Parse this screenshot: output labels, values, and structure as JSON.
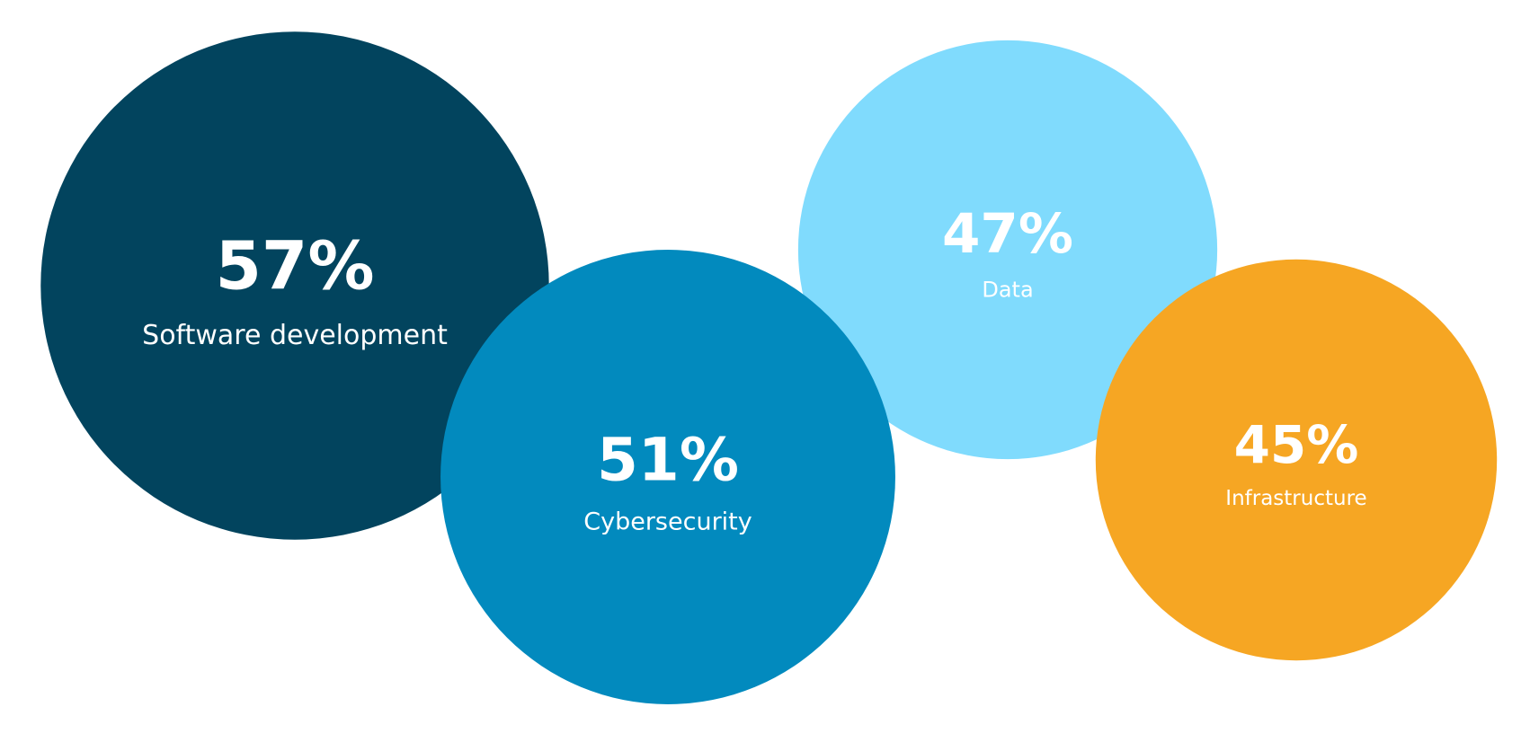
{
  "chart_data": {
    "type": "bubble",
    "title": "",
    "series": [
      {
        "category": "Software development",
        "value": 57,
        "value_label": "57%",
        "color": "#02445E"
      },
      {
        "category": "Data",
        "value": 47,
        "value_label": "47%",
        "color": "#80DBFD"
      },
      {
        "category": "Cybersecurity",
        "value": 51,
        "value_label": "51%",
        "color": "#028ABE"
      },
      {
        "category": "Infrastructure",
        "value": 45,
        "value_label": "45%",
        "color": "#F6A623"
      }
    ],
    "background": "#FFFFFF",
    "legend": "none",
    "grid": false
  }
}
